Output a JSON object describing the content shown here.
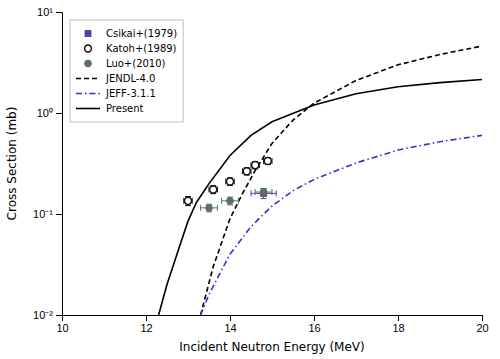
{
  "chart_data": {
    "type": "line",
    "xlabel": "Incident Neutron Energy (MeV)",
    "ylabel": "Cross Section (mb)",
    "log": "y",
    "grid": false,
    "legend": "upper left",
    "xlim": [
      10,
      20
    ],
    "xticks": [
      10,
      12,
      14,
      16,
      18,
      20
    ],
    "ylim": [
      0.01,
      10
    ],
    "yticks": [
      {
        "value": 0.01,
        "label": "10⁻²"
      },
      {
        "value": 0.1,
        "label": "10⁻¹"
      },
      {
        "value": 1,
        "label": "10⁰"
      },
      {
        "value": 10,
        "label": "10¹"
      }
    ],
    "series": [
      {
        "name": "Csikai+(1979)",
        "type": "scatter",
        "marker": "square",
        "color": "#5B3FA0",
        "x": [
          14.8
        ],
        "values": [
          0.16
        ],
        "xerr": [
          0.3
        ],
        "yerr": [
          0.018
        ]
      },
      {
        "name": "Katoh+(1989)",
        "type": "scatter",
        "marker": "circle-open",
        "color": "#111111",
        "x": [
          13.0,
          13.6,
          14.0,
          14.4,
          14.6,
          14.9
        ],
        "values": [
          0.135,
          0.175,
          0.21,
          0.265,
          0.305,
          0.335
        ],
        "xerr": [
          0.1,
          0.1,
          0.1,
          0.1,
          0.1,
          0.1
        ],
        "yerr": [
          0.014,
          0.016,
          0.018,
          0.022,
          0.025,
          0.026
        ]
      },
      {
        "name": "Luo+(2010)",
        "type": "scatter",
        "marker": "circle",
        "color": "#5A7070",
        "x": [
          13.5,
          14.0,
          14.8
        ],
        "values": [
          0.115,
          0.135,
          0.165
        ],
        "xerr": [
          0.2,
          0.2,
          0.2
        ],
        "yerr": [
          0.01,
          0.012,
          0.014
        ]
      },
      {
        "name": "JENDL-4.0",
        "type": "line",
        "line_style": "dashed",
        "color": "#000000",
        "x": [
          13.3,
          13.6,
          14.0,
          14.3,
          14.6,
          15.0,
          15.5,
          16.0,
          17.0,
          18.0,
          19.0,
          20.0
        ],
        "values": [
          0.01,
          0.03,
          0.09,
          0.16,
          0.27,
          0.5,
          0.85,
          1.25,
          2.1,
          3.0,
          3.8,
          4.6
        ]
      },
      {
        "name": "JEFF-3.1.1",
        "type": "line",
        "line_style": "dashdot",
        "color": "#3333CC",
        "x": [
          13.3,
          13.5,
          14.0,
          14.5,
          15.0,
          15.5,
          16.0,
          17.0,
          18.0,
          19.0,
          20.0
        ],
        "values": [
          0.01,
          0.016,
          0.04,
          0.075,
          0.12,
          0.17,
          0.22,
          0.32,
          0.43,
          0.52,
          0.6
        ]
      },
      {
        "name": "Present",
        "type": "line",
        "line_style": "solid",
        "color": "#000000",
        "x": [
          12.3,
          12.5,
          12.8,
          13.0,
          13.2,
          13.5,
          14.0,
          14.5,
          15.0,
          16.0,
          17.0,
          18.0,
          19.0,
          20.0
        ],
        "values": [
          0.01,
          0.02,
          0.048,
          0.085,
          0.13,
          0.2,
          0.38,
          0.6,
          0.82,
          1.2,
          1.55,
          1.82,
          2.0,
          2.15
        ]
      }
    ]
  }
}
